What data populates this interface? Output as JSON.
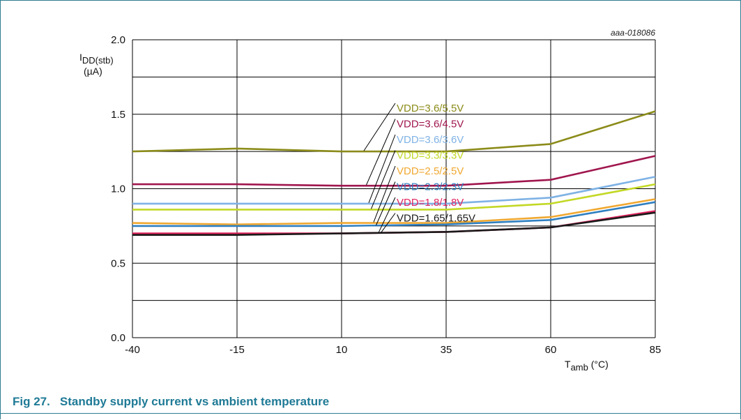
{
  "figure": {
    "number": "Fig 27.",
    "caption": "Standby supply current vs ambient temperature",
    "code": "aaa-018086"
  },
  "chart_data": {
    "type": "line",
    "ylabel_main": "I",
    "ylabel_sub": "DD(stb)",
    "yunit": "(µA)",
    "xlabel_main": "T",
    "xlabel_sub": "amb",
    "xunit": " (°C)",
    "x": [
      -40,
      -15,
      10,
      35,
      60,
      85
    ],
    "xlim": [
      -40,
      85
    ],
    "ylim": [
      0.0,
      2.0
    ],
    "yticks": [
      0.0,
      0.5,
      1.0,
      1.5,
      2.0
    ],
    "ytick_labels": [
      "0.0",
      "0.5",
      "1.0",
      "1.5",
      "2.0"
    ],
    "xtick_labels": [
      "-40",
      "-15",
      "10",
      "35",
      "60",
      "85"
    ],
    "grid": true,
    "series": [
      {
        "name": "VDD=3.6/5.5V",
        "color": "#8b8b1a",
        "values": [
          1.25,
          1.27,
          1.25,
          1.25,
          1.3,
          1.52
        ]
      },
      {
        "name": "VDD=3.6/4.5V",
        "color": "#a0164e",
        "values": [
          1.03,
          1.03,
          1.02,
          1.02,
          1.06,
          1.22
        ]
      },
      {
        "name": "VDD=3.6/3.6V",
        "color": "#7fb2e5",
        "values": [
          0.9,
          0.9,
          0.9,
          0.9,
          0.94,
          1.08
        ]
      },
      {
        "name": "VDD=3.3/3.3V",
        "color": "#c3d825",
        "values": [
          0.86,
          0.86,
          0.86,
          0.86,
          0.9,
          1.03
        ]
      },
      {
        "name": "VDD=2.5/2.5V",
        "color": "#f0a830",
        "values": [
          0.77,
          0.76,
          0.77,
          0.77,
          0.81,
          0.93
        ]
      },
      {
        "name": "VDD=2.3/2.3V",
        "color": "#2f7fc1",
        "values": [
          0.75,
          0.75,
          0.75,
          0.76,
          0.79,
          0.91
        ]
      },
      {
        "name": "VDD=1.8/1.8V",
        "color": "#e0245e",
        "values": [
          0.7,
          0.7,
          0.7,
          0.71,
          0.74,
          0.85
        ]
      },
      {
        "name": "VDD=1.65/1.65V",
        "color": "#1a1a1a",
        "values": [
          0.69,
          0.69,
          0.7,
          0.71,
          0.74,
          0.84
        ]
      }
    ]
  }
}
